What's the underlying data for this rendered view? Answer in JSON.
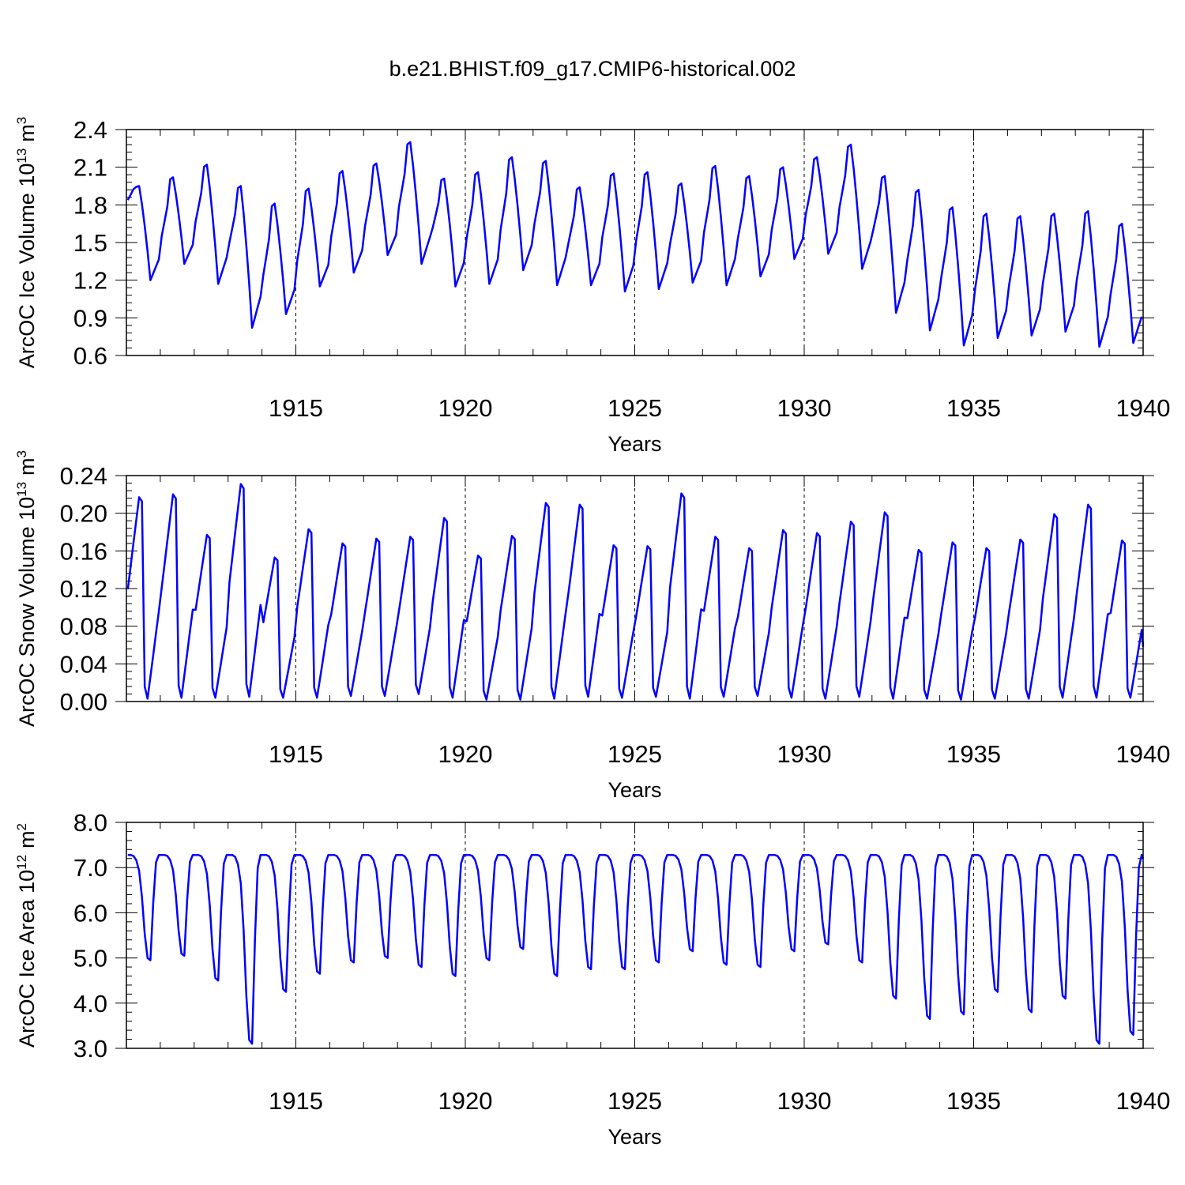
{
  "figure_title": "b.e21.BHIST.f09_g17.CMIP6-historical.002",
  "chart_data": [
    {
      "type": "line",
      "ylabel": "ArcOC Ice Volume 10",
      "ylabel_exp": "13",
      "ylabel_unit": "m",
      "ylabel_unit_exp": "3",
      "xlabel": "Years",
      "xlim": [
        1910,
        1940
      ],
      "ylim": [
        0.6,
        2.4
      ],
      "ytick_labels": [
        "0.6",
        "0.9",
        "1.2",
        "1.5",
        "1.8",
        "2.1",
        "2.4"
      ],
      "ytick_values": [
        0.6,
        0.9,
        1.2,
        1.5,
        1.8,
        2.1,
        2.4
      ],
      "xtick_labels": [
        "1915",
        "1920",
        "1925",
        "1930",
        "1935",
        "1940"
      ],
      "xtick_values": [
        1915,
        1920,
        1925,
        1930,
        1935,
        1940
      ],
      "color": "#0000ff",
      "annual_extrema": [
        [
          1.95,
          1.2
        ],
        [
          2.02,
          1.33
        ],
        [
          2.12,
          1.17
        ],
        [
          1.95,
          0.82
        ],
        [
          1.81,
          0.93
        ],
        [
          1.93,
          1.15
        ],
        [
          2.07,
          1.26
        ],
        [
          2.13,
          1.4
        ],
        [
          2.3,
          1.33
        ],
        [
          2.01,
          1.15
        ],
        [
          2.06,
          1.17
        ],
        [
          2.18,
          1.28
        ],
        [
          2.15,
          1.16
        ],
        [
          1.94,
          1.16
        ],
        [
          2.05,
          1.11
        ],
        [
          2.06,
          1.13
        ],
        [
          1.97,
          1.18
        ],
        [
          2.11,
          1.16
        ],
        [
          2.03,
          1.23
        ],
        [
          2.1,
          1.37
        ],
        [
          2.18,
          1.41
        ],
        [
          2.28,
          1.29
        ],
        [
          2.03,
          0.94
        ],
        [
          1.92,
          0.8
        ],
        [
          1.78,
          0.68
        ],
        [
          1.73,
          0.74
        ],
        [
          1.71,
          0.76
        ],
        [
          1.73,
          0.79
        ],
        [
          1.75,
          0.67
        ],
        [
          1.65,
          0.7
        ]
      ]
    },
    {
      "type": "line",
      "ylabel": "ArcOC Snow Volume 10",
      "ylabel_exp": "13",
      "ylabel_unit": "m",
      "ylabel_unit_exp": "3",
      "xlabel": "Years",
      "xlim": [
        1910,
        1940
      ],
      "ylim": [
        0.0,
        0.24
      ],
      "ytick_labels": [
        "0.00",
        "0.04",
        "0.08",
        "0.12",
        "0.16",
        "0.20",
        "0.24"
      ],
      "ytick_values": [
        0.0,
        0.04,
        0.08,
        0.12,
        0.16,
        0.2,
        0.24
      ],
      "xtick_labels": [
        "1915",
        "1920",
        "1925",
        "1930",
        "1935",
        "1940"
      ],
      "xtick_values": [
        1915,
        1920,
        1925,
        1930,
        1935,
        1940
      ],
      "color": "#0000ff",
      "annual_extrema": [
        [
          0.217,
          0.003
        ],
        [
          0.22,
          0.004
        ],
        [
          0.177,
          0.004
        ],
        [
          0.231,
          0.005
        ],
        [
          0.153,
          0.004
        ],
        [
          0.183,
          0.004
        ],
        [
          0.168,
          0.006
        ],
        [
          0.173,
          0.006
        ],
        [
          0.175,
          0.008
        ],
        [
          0.195,
          0.004
        ],
        [
          0.155,
          0.002
        ],
        [
          0.176,
          0.002
        ],
        [
          0.211,
          0.003
        ],
        [
          0.209,
          0.005
        ],
        [
          0.166,
          0.004
        ],
        [
          0.165,
          0.005
        ],
        [
          0.221,
          0.003
        ],
        [
          0.175,
          0.005
        ],
        [
          0.163,
          0.006
        ],
        [
          0.182,
          0.004
        ],
        [
          0.179,
          0.003
        ],
        [
          0.191,
          0.005
        ],
        [
          0.201,
          0.003
        ],
        [
          0.161,
          0.003
        ],
        [
          0.169,
          0.002
        ],
        [
          0.163,
          0.003
        ],
        [
          0.172,
          0.003
        ],
        [
          0.199,
          0.004
        ],
        [
          0.209,
          0.004
        ],
        [
          0.171,
          0.004
        ]
      ],
      "final_value": 0.058
    },
    {
      "type": "line",
      "ylabel": "ArcOC Ice Area 10",
      "ylabel_exp": "12",
      "ylabel_unit": "m",
      "ylabel_unit_exp": "2",
      "xlabel": "Years",
      "xlim": [
        1910,
        1940
      ],
      "ylim": [
        3.0,
        8.0
      ],
      "ytick_labels": [
        "3.0",
        "4.0",
        "5.0",
        "6.0",
        "7.0",
        "8.0"
      ],
      "ytick_values": [
        3.0,
        4.0,
        5.0,
        6.0,
        7.0,
        8.0
      ],
      "xtick_labels": [
        "1915",
        "1920",
        "1925",
        "1930",
        "1935",
        "1940"
      ],
      "xtick_values": [
        1915,
        1920,
        1925,
        1930,
        1935,
        1940
      ],
      "color": "#0000ff",
      "annual_extrema": [
        [
          7.28,
          4.95
        ],
        [
          7.28,
          5.05
        ],
        [
          7.28,
          4.5
        ],
        [
          7.28,
          3.1
        ],
        [
          7.28,
          4.25
        ],
        [
          7.28,
          4.65
        ],
        [
          7.28,
          4.9
        ],
        [
          7.28,
          5.0
        ],
        [
          7.28,
          4.8
        ],
        [
          7.28,
          4.6
        ],
        [
          7.28,
          4.95
        ],
        [
          7.28,
          5.2
        ],
        [
          7.28,
          4.6
        ],
        [
          7.28,
          4.75
        ],
        [
          7.28,
          4.75
        ],
        [
          7.28,
          4.9
        ],
        [
          7.28,
          5.15
        ],
        [
          7.28,
          4.85
        ],
        [
          7.28,
          4.8
        ],
        [
          7.28,
          5.15
        ],
        [
          7.28,
          5.3
        ],
        [
          7.28,
          4.9
        ],
        [
          7.28,
          4.1
        ],
        [
          7.28,
          3.65
        ],
        [
          7.28,
          3.75
        ],
        [
          7.28,
          4.25
        ],
        [
          7.28,
          3.8
        ],
        [
          7.28,
          4.1
        ],
        [
          7.28,
          3.1
        ],
        [
          7.28,
          3.3
        ]
      ],
      "final_value": 7.2
    }
  ]
}
